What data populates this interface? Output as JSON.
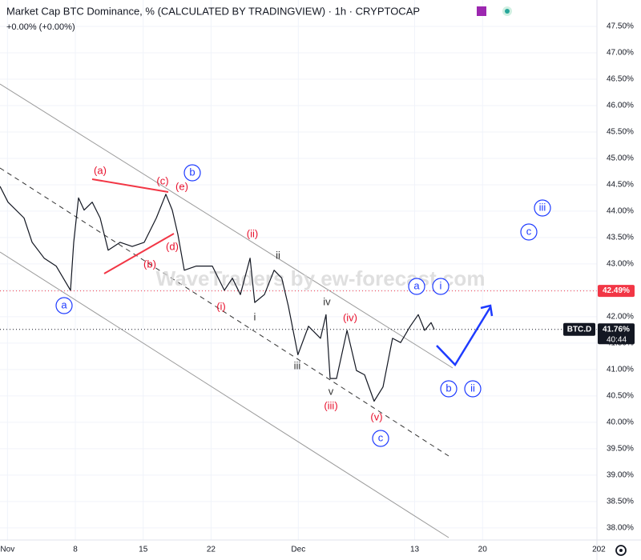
{
  "chart_data": {
    "type": "line",
    "title": "Market Cap BTC Dominance, % (CALCULATED BY TRADINGVIEW) · 1h · CRYPTOCAP",
    "subtitle": "+0.00% (+0.00%)",
    "watermark": "WaveTraders by ew-forecast.com",
    "symbol": "BTC.D",
    "countdown": "40:44",
    "series": [
      {
        "name": "BTC.D",
        "color": "#131722",
        "x": [
          -0.77,
          0.06,
          1.71,
          2.54,
          3.78,
          5.02,
          6.5,
          6.83,
          7.33,
          7.91,
          8.74,
          9.56,
          10.39,
          11.63,
          12.87,
          14.11,
          15.35,
          16.34,
          17.0,
          17.58,
          18.24,
          19.48,
          21.13,
          22.37,
          23.2,
          24.02,
          25.02,
          25.5,
          26.5,
          27.5,
          28.3,
          28.97,
          29.96,
          31.05,
          32.29,
          32.86,
          33.28,
          33.94,
          35.02,
          36.0,
          36.83,
          37.82,
          38.73,
          39.72,
          40.55,
          41.54,
          42.37,
          43.03,
          43.69,
          44.02
        ],
        "values": [
          44.47,
          44.17,
          43.87,
          43.41,
          43.11,
          42.96,
          42.5,
          43.41,
          44.25,
          44.02,
          44.17,
          43.87,
          43.26,
          43.41,
          43.33,
          43.41,
          43.87,
          44.32,
          44.02,
          43.56,
          42.88,
          42.96,
          42.96,
          42.5,
          42.73,
          42.42,
          43.11,
          42.27,
          42.42,
          42.88,
          42.73,
          42.2,
          41.28,
          41.82,
          41.59,
          42.04,
          40.83,
          40.83,
          41.74,
          40.98,
          40.9,
          40.4,
          40.67,
          41.59,
          41.51,
          41.82,
          42.04,
          41.74,
          41.89,
          41.76
        ]
      }
    ],
    "price_lines": [
      {
        "value": 42.49,
        "label": "42.49%",
        "color": "#f23645"
      },
      {
        "value": 41.76,
        "label": "41.76%",
        "color": "#131722"
      }
    ],
    "xlim": [
      -0.77,
      60.8
    ],
    "xticks": [
      {
        "value": 0,
        "label": "Nov"
      },
      {
        "value": 7,
        "label": "8"
      },
      {
        "value": 14,
        "label": "15"
      },
      {
        "value": 21,
        "label": "22"
      },
      {
        "value": 30,
        "label": "Dec"
      },
      {
        "value": 42,
        "label": "13"
      },
      {
        "value": 49,
        "label": "20"
      },
      {
        "value": 61,
        "label": "202"
      }
    ],
    "ylim": [
      37.77,
      48.0
    ],
    "yticks": [
      {
        "value": 38,
        "label": "38.00%"
      },
      {
        "value": 38.5,
        "label": "38.50%"
      },
      {
        "value": 39,
        "label": "39.00%"
      },
      {
        "value": 39.5,
        "label": "39.50%"
      },
      {
        "value": 40,
        "label": "40.00%"
      },
      {
        "value": 40.5,
        "label": "40.50%"
      },
      {
        "value": 41,
        "label": "41.00%"
      },
      {
        "value": 41.5,
        "label": "41.50%"
      },
      {
        "value": 42,
        "label": "42.00%"
      },
      {
        "value": 42.5,
        "label": "42.50%"
      },
      {
        "value": 43,
        "label": "43.00%"
      },
      {
        "value": 43.5,
        "label": "43.50%"
      },
      {
        "value": 44,
        "label": "44.00%"
      },
      {
        "value": 44.5,
        "label": "44.50%"
      },
      {
        "value": 45,
        "label": "45.00%"
      },
      {
        "value": 45.5,
        "label": "45.50%"
      },
      {
        "value": 46,
        "label": "46.00%"
      },
      {
        "value": 46.5,
        "label": "46.50%"
      },
      {
        "value": 47,
        "label": "47.00%"
      },
      {
        "value": 47.5,
        "label": "47.50%"
      }
    ],
    "annotations": [
      "a",
      "b",
      "c",
      "a",
      "i",
      "iii",
      "c",
      "b",
      "ii",
      "(a)",
      "(c)",
      "(e)",
      "(d)",
      "(b)",
      "(i)",
      "(ii)",
      "(iii)",
      "(iv)",
      "(v)",
      "ii",
      "i",
      "iii",
      "iv",
      "v"
    ]
  }
}
